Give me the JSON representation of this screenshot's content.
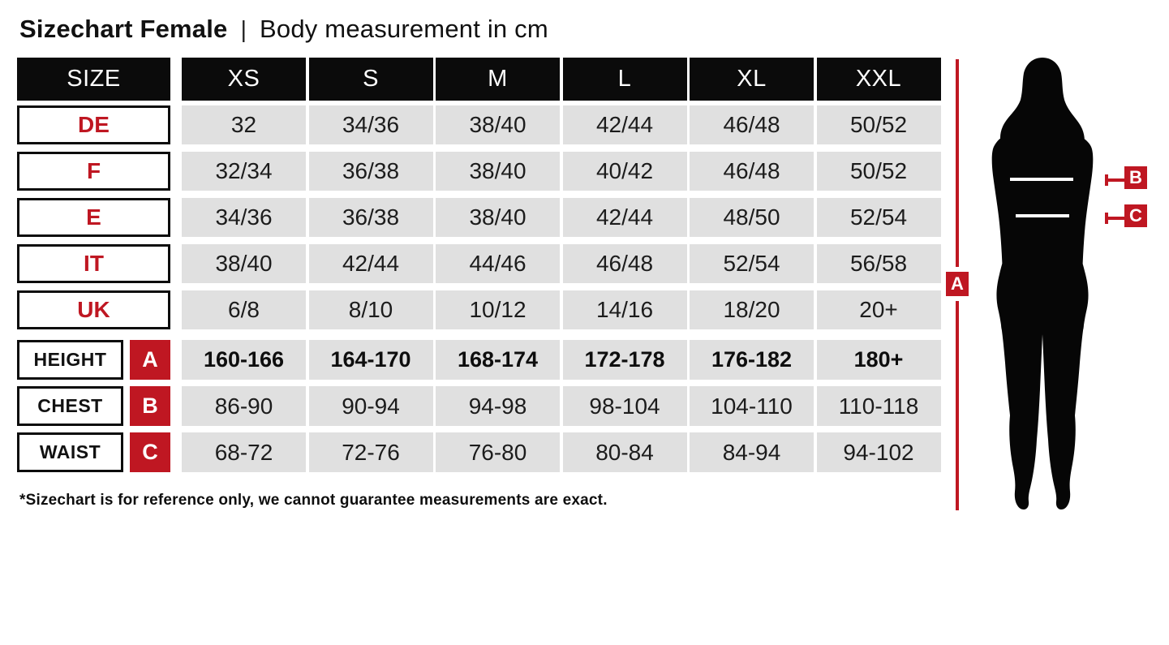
{
  "title": {
    "main": "Sizechart Female",
    "separator": "|",
    "sub": "Body measurement in cm"
  },
  "footnote": "*Sizechart is for reference only, we cannot guarantee measurements are exact.",
  "figure": {
    "label_a": "A",
    "label_b": "B",
    "label_c": "C"
  },
  "colors": {
    "accent_red": "#bf1722",
    "header_black": "#0b0b0b",
    "cell_gray": "#e0e0e0"
  },
  "chart_data": {
    "type": "table",
    "title": "Sizechart Female | Body measurement in cm",
    "header": [
      "SIZE",
      "XS",
      "S",
      "M",
      "L",
      "XL",
      "XXL"
    ],
    "country_rows": [
      {
        "label": "DE",
        "values": [
          "32",
          "34/36",
          "38/40",
          "42/44",
          "46/48",
          "50/52"
        ]
      },
      {
        "label": "F",
        "values": [
          "32/34",
          "36/38",
          "38/40",
          "40/42",
          "46/48",
          "50/52"
        ]
      },
      {
        "label": "E",
        "values": [
          "34/36",
          "36/38",
          "38/40",
          "42/44",
          "48/50",
          "52/54"
        ]
      },
      {
        "label": "IT",
        "values": [
          "38/40",
          "42/44",
          "44/46",
          "46/48",
          "52/54",
          "56/58"
        ]
      },
      {
        "label": "UK",
        "values": [
          "6/8",
          "8/10",
          "10/12",
          "14/16",
          "18/20",
          "20+"
        ]
      }
    ],
    "measure_rows": [
      {
        "label": "HEIGHT",
        "letter": "A",
        "bold": true,
        "values": [
          "160-166",
          "164-170",
          "168-174",
          "172-178",
          "176-182",
          "180+"
        ]
      },
      {
        "label": "CHEST",
        "letter": "B",
        "bold": false,
        "values": [
          "86-90",
          "90-94",
          "94-98",
          "98-104",
          "104-110",
          "110-118"
        ]
      },
      {
        "label": "WAIST",
        "letter": "C",
        "bold": false,
        "values": [
          "68-72",
          "72-76",
          "76-80",
          "80-84",
          "84-94",
          "94-102"
        ]
      }
    ]
  }
}
